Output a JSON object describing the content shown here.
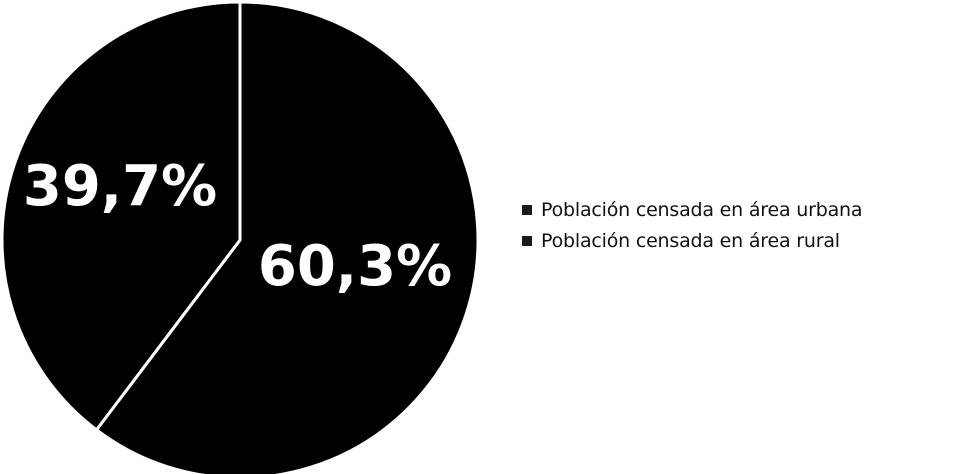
{
  "chart_data": {
    "type": "pie",
    "categories": [
      "Población censada en área urbana",
      "Población censada en área rural"
    ],
    "values": [
      60.3,
      39.7
    ],
    "data_labels": [
      "60,3%",
      "39,7%"
    ],
    "legend_position": "right",
    "colors": {
      "slices": [
        "#000000",
        "#000000"
      ],
      "separator": "#ffffff",
      "labels": "#ffffff",
      "legend_swatch": "#1a1a1a"
    }
  }
}
